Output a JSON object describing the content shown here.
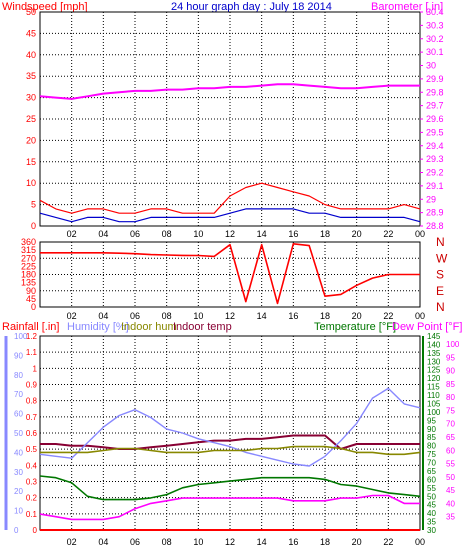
{
  "title": "24 hour graph day : July 18 2014",
  "colors": {
    "frame": "#000000",
    "wind": "#ff0000",
    "gust": "#ff0000",
    "avgwind": "#0000cc",
    "baro": "#ff00ff",
    "direction": "#ff0000",
    "compass": "#cc0000",
    "rain": "#ff0000",
    "humidity": "#8888ff",
    "indoorhum": "#888800",
    "indoortemp": "#880033",
    "temperature": "#007700",
    "dewpoint": "#ff00ff",
    "gridline": "#000000",
    "yellow_marker": "#ffff00"
  },
  "chart_data": [
    {
      "type": "line",
      "title": "24 hour graph day : July 18 2014",
      "x_ticks": [
        "02",
        "04",
        "06",
        "08",
        "10",
        "12",
        "14",
        "16",
        "18",
        "20",
        "22",
        "00"
      ],
      "x_range_hours": [
        0,
        24
      ],
      "left_axis": {
        "label": "Windspeed [mph]",
        "ticks": [
          "0",
          "5",
          "10",
          "15",
          "20",
          "25",
          "30",
          "35",
          "40",
          "45",
          "50"
        ],
        "ylim": [
          0,
          50
        ]
      },
      "right_axis": {
        "label": "Barometer [.in]",
        "ticks": [
          "28.8",
          "28.9",
          "29",
          "29.1",
          "29.2",
          "29.3",
          "29.4",
          "29.5",
          "29.6",
          "29.7",
          "29.8",
          "29.9",
          "30",
          "30.1",
          "30.2",
          "30.3",
          "30.4"
        ],
        "ylim": [
          28.8,
          30.4
        ]
      },
      "x": [
        0,
        1,
        2,
        3,
        4,
        5,
        6,
        7,
        8,
        9,
        10,
        11,
        12,
        13,
        14,
        15,
        16,
        17,
        18,
        19,
        20,
        21,
        22,
        23,
        24
      ],
      "series": [
        {
          "name": "Barometer",
          "axis": "right",
          "values": [
            29.77,
            29.76,
            29.75,
            29.77,
            29.79,
            29.8,
            29.81,
            29.81,
            29.82,
            29.82,
            29.83,
            29.83,
            29.84,
            29.84,
            29.85,
            29.86,
            29.86,
            29.85,
            29.84,
            29.83,
            29.83,
            29.84,
            29.85,
            29.85,
            29.85
          ]
        },
        {
          "name": "Gust",
          "axis": "left",
          "values": [
            6,
            4,
            3,
            4,
            4,
            3,
            3,
            4,
            4,
            3,
            3,
            3,
            7,
            9,
            10,
            9,
            8,
            7,
            5,
            4,
            4,
            4,
            4,
            5,
            4
          ]
        },
        {
          "name": "Windspeed",
          "axis": "left",
          "values": [
            3,
            2,
            1,
            2,
            2,
            1,
            1,
            2,
            2,
            2,
            2,
            2,
            3,
            4,
            4,
            4,
            4,
            3,
            3,
            2,
            2,
            2,
            2,
            2,
            1
          ]
        }
      ]
    },
    {
      "type": "line",
      "x_ticks": [
        "02",
        "04",
        "06",
        "08",
        "10",
        "12",
        "14",
        "16",
        "18",
        "20",
        "22",
        "00"
      ],
      "left_axis": {
        "ticks": [
          "0",
          "45",
          "90",
          "135",
          "180",
          "225",
          "270",
          "315",
          "360"
        ],
        "ylim": [
          0,
          360
        ]
      },
      "compass_labels": [
        "N",
        "W",
        "S",
        "E",
        "N"
      ],
      "x": [
        0,
        1,
        2,
        3,
        4,
        5,
        6,
        7,
        8,
        9,
        10,
        11,
        12,
        13,
        14,
        15,
        16,
        17,
        18,
        19,
        20,
        21,
        22,
        23,
        24
      ],
      "series": [
        {
          "name": "Wind direction",
          "axis": "left",
          "values": [
            300,
            300,
            300,
            300,
            300,
            298,
            295,
            290,
            288,
            286,
            285,
            280,
            345,
            30,
            345,
            20,
            350,
            340,
            60,
            70,
            120,
            160,
            180,
            180,
            180
          ]
        }
      ]
    },
    {
      "type": "line",
      "x_ticks": [
        "02",
        "04",
        "06",
        "08",
        "10",
        "12",
        "14",
        "16",
        "18",
        "20",
        "22",
        "00"
      ],
      "legend": [
        "Rainfall [.in]",
        "Humidity [%]",
        "Indoor hum",
        "Indoor temp",
        "Temperature [°F]",
        "Dew Point [°F]"
      ],
      "rain_axis": {
        "ticks": [
          "0",
          "0.1",
          "0.2",
          "0.3",
          "0.4",
          "0.5",
          "0.6",
          "0.7",
          "0.8",
          "0.9",
          "1",
          "1.1",
          "1.2"
        ],
        "ylim": [
          0,
          1.2
        ]
      },
      "humidity_axis": {
        "ticks": [
          "0",
          "10",
          "20",
          "30",
          "40",
          "50",
          "60",
          "70",
          "80",
          "90",
          "100"
        ],
        "ylim": [
          0,
          100
        ]
      },
      "temperature_axis": {
        "ticks": [
          "30",
          "35",
          "40",
          "45",
          "50",
          "55",
          "60",
          "65",
          "70",
          "75",
          "80",
          "85",
          "90",
          "95",
          "100",
          "105",
          "110",
          "115",
          "120",
          "125",
          "130",
          "135",
          "140",
          "145"
        ],
        "ylim": [
          30,
          145
        ]
      },
      "dewpoint_axis": {
        "ticks": [
          "35",
          "40",
          "45",
          "50",
          "55",
          "60",
          "65",
          "70",
          "75",
          "80",
          "85",
          "90",
          "95",
          "100"
        ],
        "ylim": [
          30,
          103
        ]
      },
      "x": [
        0,
        1,
        2,
        3,
        4,
        5,
        6,
        7,
        8,
        9,
        10,
        11,
        12,
        13,
        14,
        15,
        16,
        17,
        18,
        19,
        20,
        21,
        22,
        23,
        24
      ],
      "series": [
        {
          "name": "Indoor temp",
          "values": [
            81,
            81,
            80,
            80,
            79,
            78,
            78,
            79,
            80,
            81,
            82,
            83,
            83,
            84,
            84,
            85,
            86,
            86,
            86,
            78,
            81,
            81,
            81,
            81,
            81
          ]
        },
        {
          "name": "Humidity",
          "values": [
            39,
            38,
            37,
            45,
            53,
            59,
            62,
            58,
            52,
            50,
            47,
            45,
            43,
            40,
            38,
            36,
            34,
            33,
            38,
            46,
            55,
            68,
            73,
            65,
            63
          ]
        },
        {
          "name": "Indoor hum",
          "values": [
            40,
            40,
            40,
            40,
            41,
            42,
            42,
            41,
            40,
            40,
            40,
            41,
            41,
            41,
            42,
            42,
            43,
            43,
            43,
            42,
            40,
            40,
            39,
            39,
            40
          ]
        },
        {
          "name": "Temperature",
          "values": [
            62,
            61,
            58,
            50,
            48,
            48,
            48,
            49,
            51,
            55,
            57,
            58,
            59,
            60,
            61,
            61,
            61,
            61,
            60,
            57,
            56,
            54,
            52,
            51,
            50
          ]
        },
        {
          "name": "Dew Point",
          "values": [
            36,
            35,
            34,
            34,
            34,
            35,
            38,
            40,
            41,
            42,
            42,
            42,
            42,
            42,
            42,
            42,
            41,
            41,
            41,
            42,
            42,
            43,
            43,
            40,
            40
          ]
        },
        {
          "name": "Rainfall",
          "values": [
            0,
            0,
            0,
            0,
            0,
            0,
            0,
            0,
            0,
            0,
            0,
            0,
            0,
            0,
            0,
            0,
            0,
            0,
            0,
            0,
            0,
            0,
            0,
            0,
            0
          ]
        }
      ]
    }
  ]
}
